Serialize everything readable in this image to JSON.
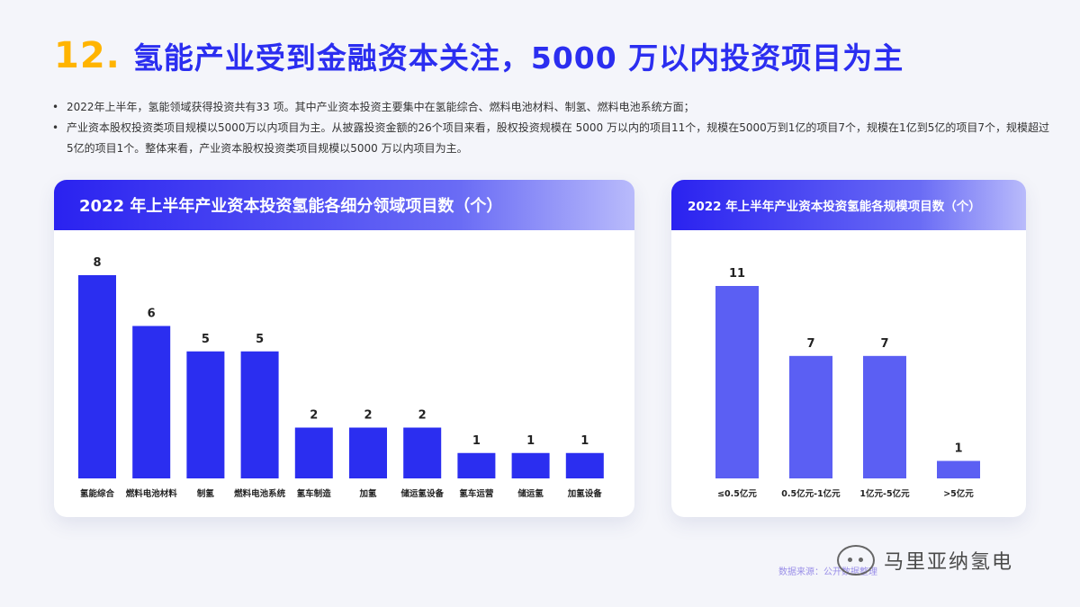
{
  "header": {
    "number": "12.",
    "title": "氢能产业受到金融资本关注，5000 万以内投资项目为主"
  },
  "bullets": [
    "2022年上半年，氢能领域获得投资共有33 项。其中产业资本投资主要集中在氢能综合、燃料电池材料、制氢、燃料电池系统方面；",
    "产业资本股权投资类项目规模以5000万以内项目为主。从披露投资金额的26个项目来看，股权投资规模在  5000  万以内的项目11个，规模在5000万到1亿的项目7个，规模在1亿到5亿的项目7个，规模超过5亿的项目1个。整体来看，产业资本股权投资类项目规模以5000 万以内项目为主。"
  ],
  "chart_data": [
    {
      "type": "bar",
      "title": "2022 年上半年产业资本投资氢能各细分领域项目数（个）",
      "categories": [
        "氢能综合",
        "燃料电池材料",
        "制氢",
        "燃料电池系统",
        "氢车制造",
        "加氢",
        "储运氢设备",
        "氢车运营",
        "储运氢",
        "加氢设备"
      ],
      "values": [
        8,
        6,
        5,
        5,
        2,
        2,
        2,
        1,
        1,
        1
      ],
      "ylim": [
        0,
        8
      ],
      "grid": false,
      "color": "#2b2ef0"
    },
    {
      "type": "bar",
      "title": "2022 年上半年产业资本投资氢能各规模项目数（个）",
      "categories": [
        "≤0.5亿元",
        "0.5亿元-1亿元",
        "1亿元-5亿元",
        ">5亿元"
      ],
      "values": [
        11,
        7,
        7,
        1
      ],
      "ylim": [
        0,
        11
      ],
      "grid": false,
      "color": "#5b5ff3"
    }
  ],
  "footer": {
    "source": "数据来源：公开数据整理",
    "brand": "马里亚纳氢电"
  }
}
